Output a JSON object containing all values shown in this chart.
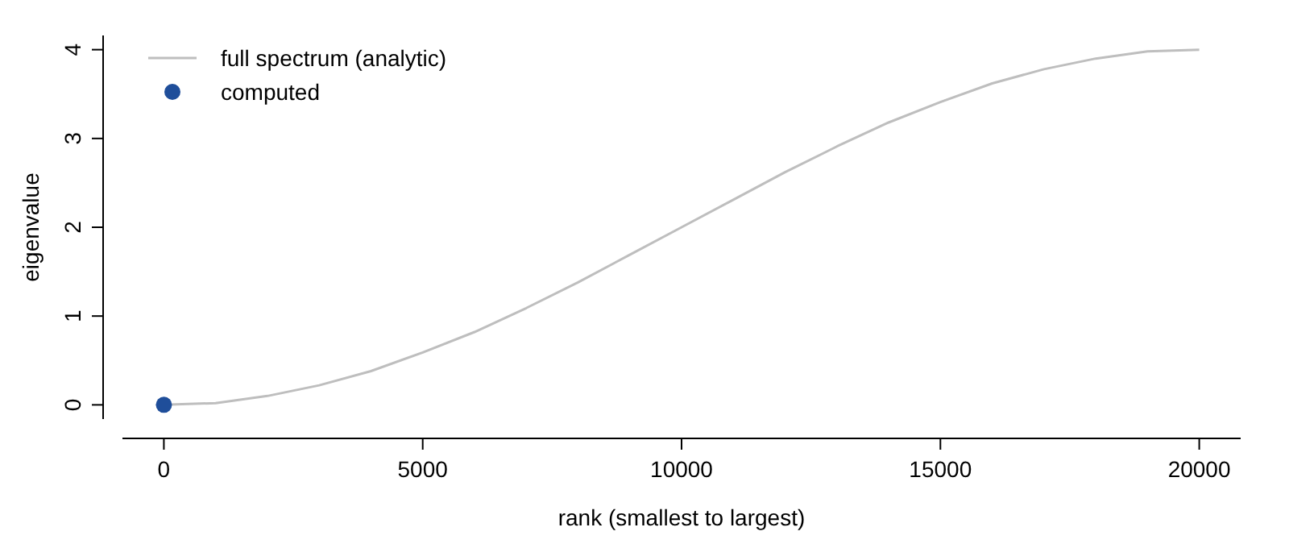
{
  "chart_data": {
    "type": "line",
    "xlabel": "rank (smallest to largest)",
    "ylabel": "eigenvalue",
    "xlim": [
      -800,
      20800
    ],
    "ylim": [
      -0.16,
      4.16
    ],
    "xticks": [
      0,
      5000,
      10000,
      15000,
      20000
    ],
    "yticks": [
      0,
      1,
      2,
      3,
      4
    ],
    "legend": "top left",
    "grid": false,
    "series": [
      {
        "name": "full spectrum (analytic)",
        "color": "#bebebe",
        "x": [
          0,
          1000,
          2000,
          3000,
          4000,
          5000,
          6000,
          7000,
          8000,
          9000,
          10000,
          11000,
          12000,
          13000,
          14000,
          15000,
          16000,
          17000,
          18000,
          19000,
          20000
        ],
        "values": [
          0,
          0.02,
          0.1,
          0.22,
          0.38,
          0.59,
          0.82,
          1.09,
          1.38,
          1.69,
          2,
          2.31,
          2.62,
          2.91,
          3.18,
          3.41,
          3.62,
          3.78,
          3.9,
          3.98,
          4
        ]
      },
      {
        "name": "computed",
        "type": "scatter",
        "color": "#1f4e9a",
        "marker": "circle",
        "x": [
          1
        ],
        "values": [
          0
        ]
      }
    ]
  }
}
